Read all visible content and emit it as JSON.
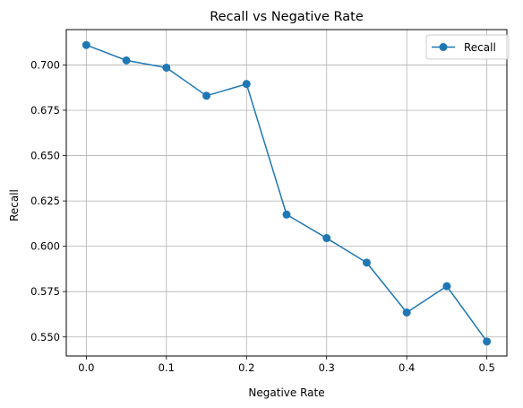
{
  "chart_data": {
    "type": "line",
    "title": "Recall vs Negative Rate",
    "xlabel": "Negative Rate",
    "ylabel": "Recall",
    "xlim": [
      -0.025,
      0.525
    ],
    "ylim": [
      0.5395,
      0.7195
    ],
    "xticks": [
      0.0,
      0.1,
      0.2,
      0.3,
      0.4,
      0.5
    ],
    "xtick_labels": [
      "0.0",
      "0.1",
      "0.2",
      "0.3",
      "0.4",
      "0.5"
    ],
    "yticks": [
      0.55,
      0.575,
      0.6,
      0.625,
      0.65,
      0.675,
      0.7
    ],
    "ytick_labels": [
      "0.550",
      "0.575",
      "0.600",
      "0.625",
      "0.650",
      "0.675",
      "0.700"
    ],
    "grid": true,
    "legend_position": "top-right",
    "series": [
      {
        "name": "Recall",
        "color": "#1f77b4",
        "marker": "circle",
        "x": [
          0.0,
          0.05,
          0.1,
          0.15,
          0.2,
          0.25,
          0.3,
          0.35,
          0.4,
          0.45,
          0.5
        ],
        "y": [
          0.711,
          0.7025,
          0.6985,
          0.683,
          0.6895,
          0.6175,
          0.6045,
          0.591,
          0.5635,
          0.578,
          0.5475
        ]
      }
    ]
  }
}
